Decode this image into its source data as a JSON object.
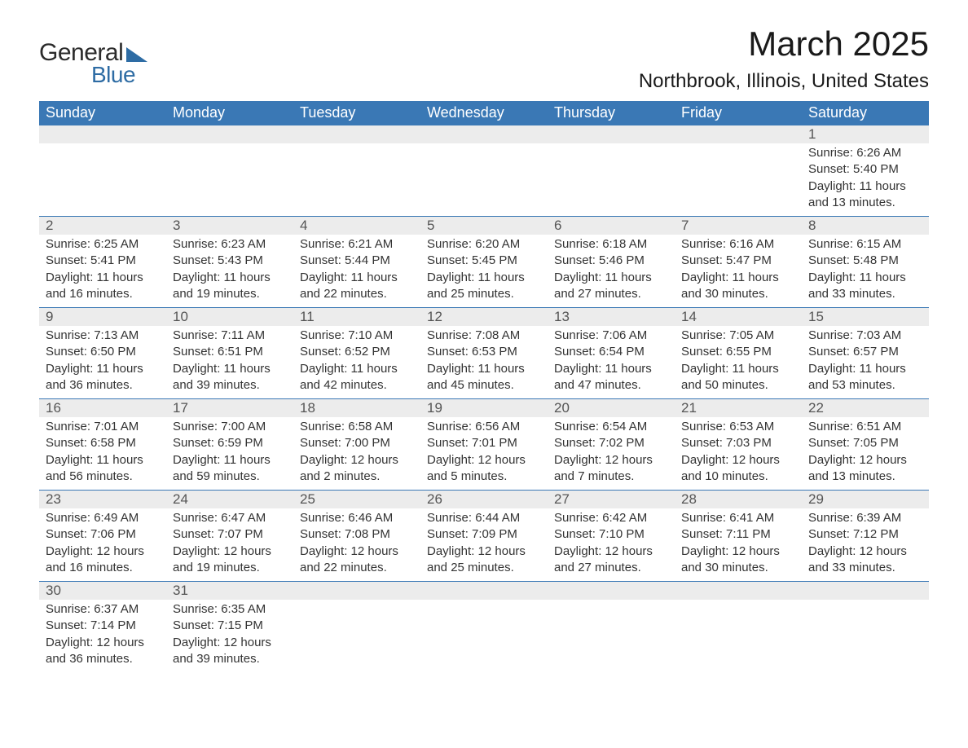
{
  "brand": {
    "word1": "General",
    "word2": "Blue",
    "accent_color": "#2e6ca4"
  },
  "title": "March 2025",
  "location": "Northbrook, Illinois, United States",
  "colors": {
    "header_bg": "#3a78b5",
    "header_text": "#ffffff",
    "daynum_bg": "#ececec",
    "text": "#333333",
    "row_border": "#3a78b5"
  },
  "weekdays": [
    "Sunday",
    "Monday",
    "Tuesday",
    "Wednesday",
    "Thursday",
    "Friday",
    "Saturday"
  ],
  "leading_blanks": 6,
  "days": [
    {
      "n": 1,
      "sunrise": "6:26 AM",
      "sunset": "5:40 PM",
      "dl_h": 11,
      "dl_m": 13
    },
    {
      "n": 2,
      "sunrise": "6:25 AM",
      "sunset": "5:41 PM",
      "dl_h": 11,
      "dl_m": 16
    },
    {
      "n": 3,
      "sunrise": "6:23 AM",
      "sunset": "5:43 PM",
      "dl_h": 11,
      "dl_m": 19
    },
    {
      "n": 4,
      "sunrise": "6:21 AM",
      "sunset": "5:44 PM",
      "dl_h": 11,
      "dl_m": 22
    },
    {
      "n": 5,
      "sunrise": "6:20 AM",
      "sunset": "5:45 PM",
      "dl_h": 11,
      "dl_m": 25
    },
    {
      "n": 6,
      "sunrise": "6:18 AM",
      "sunset": "5:46 PM",
      "dl_h": 11,
      "dl_m": 27
    },
    {
      "n": 7,
      "sunrise": "6:16 AM",
      "sunset": "5:47 PM",
      "dl_h": 11,
      "dl_m": 30
    },
    {
      "n": 8,
      "sunrise": "6:15 AM",
      "sunset": "5:48 PM",
      "dl_h": 11,
      "dl_m": 33
    },
    {
      "n": 9,
      "sunrise": "7:13 AM",
      "sunset": "6:50 PM",
      "dl_h": 11,
      "dl_m": 36
    },
    {
      "n": 10,
      "sunrise": "7:11 AM",
      "sunset": "6:51 PM",
      "dl_h": 11,
      "dl_m": 39
    },
    {
      "n": 11,
      "sunrise": "7:10 AM",
      "sunset": "6:52 PM",
      "dl_h": 11,
      "dl_m": 42
    },
    {
      "n": 12,
      "sunrise": "7:08 AM",
      "sunset": "6:53 PM",
      "dl_h": 11,
      "dl_m": 45
    },
    {
      "n": 13,
      "sunrise": "7:06 AM",
      "sunset": "6:54 PM",
      "dl_h": 11,
      "dl_m": 47
    },
    {
      "n": 14,
      "sunrise": "7:05 AM",
      "sunset": "6:55 PM",
      "dl_h": 11,
      "dl_m": 50
    },
    {
      "n": 15,
      "sunrise": "7:03 AM",
      "sunset": "6:57 PM",
      "dl_h": 11,
      "dl_m": 53
    },
    {
      "n": 16,
      "sunrise": "7:01 AM",
      "sunset": "6:58 PM",
      "dl_h": 11,
      "dl_m": 56
    },
    {
      "n": 17,
      "sunrise": "7:00 AM",
      "sunset": "6:59 PM",
      "dl_h": 11,
      "dl_m": 59
    },
    {
      "n": 18,
      "sunrise": "6:58 AM",
      "sunset": "7:00 PM",
      "dl_h": 12,
      "dl_m": 2
    },
    {
      "n": 19,
      "sunrise": "6:56 AM",
      "sunset": "7:01 PM",
      "dl_h": 12,
      "dl_m": 5
    },
    {
      "n": 20,
      "sunrise": "6:54 AM",
      "sunset": "7:02 PM",
      "dl_h": 12,
      "dl_m": 7
    },
    {
      "n": 21,
      "sunrise": "6:53 AM",
      "sunset": "7:03 PM",
      "dl_h": 12,
      "dl_m": 10
    },
    {
      "n": 22,
      "sunrise": "6:51 AM",
      "sunset": "7:05 PM",
      "dl_h": 12,
      "dl_m": 13
    },
    {
      "n": 23,
      "sunrise": "6:49 AM",
      "sunset": "7:06 PM",
      "dl_h": 12,
      "dl_m": 16
    },
    {
      "n": 24,
      "sunrise": "6:47 AM",
      "sunset": "7:07 PM",
      "dl_h": 12,
      "dl_m": 19
    },
    {
      "n": 25,
      "sunrise": "6:46 AM",
      "sunset": "7:08 PM",
      "dl_h": 12,
      "dl_m": 22
    },
    {
      "n": 26,
      "sunrise": "6:44 AM",
      "sunset": "7:09 PM",
      "dl_h": 12,
      "dl_m": 25
    },
    {
      "n": 27,
      "sunrise": "6:42 AM",
      "sunset": "7:10 PM",
      "dl_h": 12,
      "dl_m": 27
    },
    {
      "n": 28,
      "sunrise": "6:41 AM",
      "sunset": "7:11 PM",
      "dl_h": 12,
      "dl_m": 30
    },
    {
      "n": 29,
      "sunrise": "6:39 AM",
      "sunset": "7:12 PM",
      "dl_h": 12,
      "dl_m": 33
    },
    {
      "n": 30,
      "sunrise": "6:37 AM",
      "sunset": "7:14 PM",
      "dl_h": 12,
      "dl_m": 36
    },
    {
      "n": 31,
      "sunrise": "6:35 AM",
      "sunset": "7:15 PM",
      "dl_h": 12,
      "dl_m": 39
    }
  ],
  "labels": {
    "sunrise": "Sunrise: ",
    "sunset": "Sunset: ",
    "daylight_a": "Daylight: ",
    "hours": " hours",
    "and": "and ",
    "minutes": " minutes."
  }
}
